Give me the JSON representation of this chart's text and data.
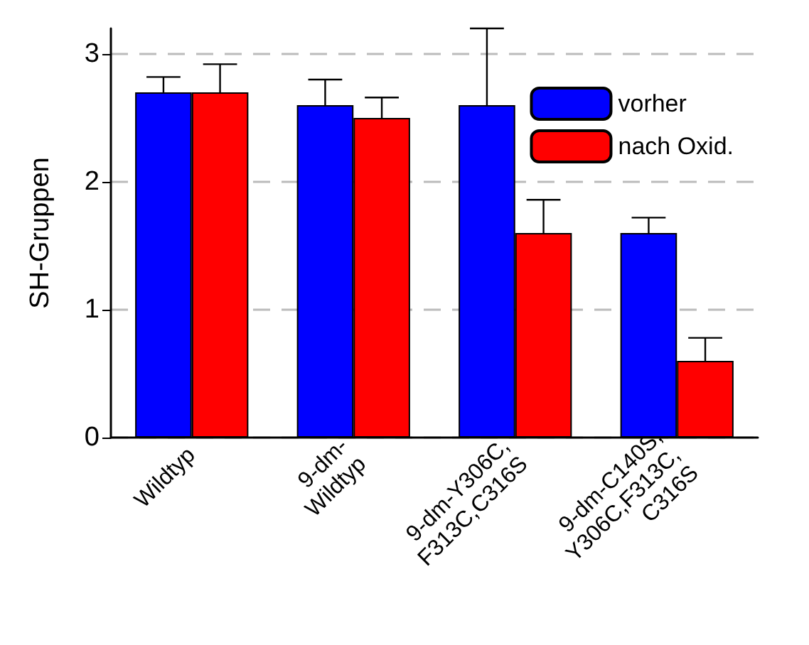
{
  "chart_data": {
    "type": "bar",
    "ylabel": "SH-Gruppen",
    "categories": [
      "Wildtyp",
      "9-dm-\nWildtyp",
      "9-dm-Y306C,\nF313C,C316S",
      "9-dm-C140S,\nY306C,F313C,\nC316S"
    ],
    "series": [
      {
        "name": "vorher",
        "color": "#0000ff",
        "values": [
          2.7,
          2.6,
          2.6,
          1.6
        ],
        "errors": [
          [
            2.7,
            2.82
          ],
          [
            2.6,
            2.8
          ],
          [
            2.6,
            3.2
          ],
          [
            1.6,
            1.72
          ]
        ]
      },
      {
        "name": "nach Oxid.",
        "color": "#ff0000",
        "values": [
          2.7,
          2.5,
          1.6,
          0.6
        ],
        "errors": [
          [
            2.7,
            2.92
          ],
          [
            2.5,
            2.66
          ],
          [
            1.6,
            1.86
          ],
          [
            0.6,
            0.78
          ]
        ]
      }
    ],
    "ylim": [
      0,
      3.2
    ],
    "yticks": [
      0,
      1,
      2,
      3
    ],
    "grid": "y",
    "legend": "top right"
  }
}
